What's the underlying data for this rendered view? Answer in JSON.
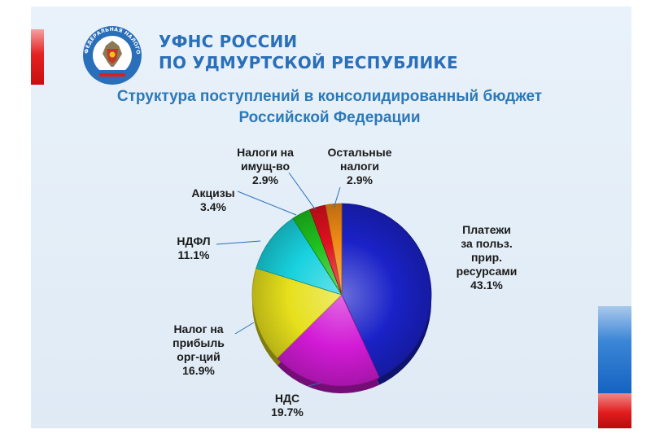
{
  "header": {
    "org_line1": "УФНС РОССИИ",
    "org_line2": "ПО УДМУРТСКОЙ РЕСПУБЛИКЕ",
    "logo_text": "ФЕДЕРАЛЬНАЯ НАЛОГОВАЯ СЛУЖБА"
  },
  "colors": {
    "accent_blue": "#2a6fb9",
    "accent_red": "#e21d1d"
  },
  "chart_data": {
    "type": "pie",
    "title_line1": "Структура поступлений в консолидированный бюджет",
    "title_line2": "Российской Федерации",
    "slices": [
      {
        "label_lines": [
          "Платежи",
          "за польз.",
          "прир.",
          "ресурсами"
        ],
        "value": 43.1,
        "display": "43.1%",
        "color": "#1a22c8"
      },
      {
        "label_lines": [
          "НДС"
        ],
        "value": 19.7,
        "display": "19.7%",
        "color": "#d21ad6"
      },
      {
        "label_lines": [
          "Налог на",
          "прибыль",
          "орг-ций"
        ],
        "value": 16.9,
        "display": "16.9%",
        "color": "#e6e01c"
      },
      {
        "label_lines": [
          "НДФЛ"
        ],
        "value": 11.1,
        "display": "11.1%",
        "color": "#18d2de"
      },
      {
        "label_lines": [
          "Акцизы"
        ],
        "value": 3.4,
        "display": "3.4%",
        "color": "#1fc21f"
      },
      {
        "label_lines": [
          "Налоги на",
          "имущ-во"
        ],
        "value": 2.9,
        "display": "2.9%",
        "color": "#e0101e"
      },
      {
        "label_lines": [
          "Остальные",
          "налоги"
        ],
        "value": 2.9,
        "display": "2.9%",
        "color": "#f08a16"
      }
    ]
  }
}
